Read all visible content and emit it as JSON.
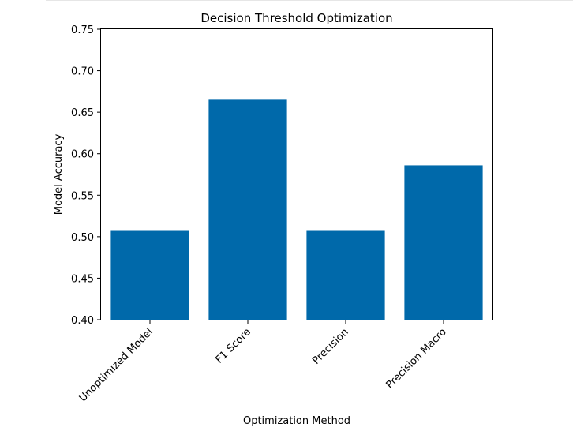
{
  "chart_data": {
    "type": "bar",
    "title": "Decision Threshold Optimization",
    "xlabel": "Optimization Method",
    "ylabel": "Model Accuracy",
    "categories": [
      "Unoptimized Model",
      "F1 Score",
      "Precision",
      "Precision Macro"
    ],
    "values": [
      0.507,
      0.665,
      0.507,
      0.586
    ],
    "ylim": [
      0.4,
      0.75
    ],
    "yticks": [
      "0.40",
      "0.45",
      "0.50",
      "0.55",
      "0.60",
      "0.65",
      "0.70",
      "0.75"
    ],
    "bar_color": "#0069aa",
    "grid": false,
    "legend": false
  }
}
